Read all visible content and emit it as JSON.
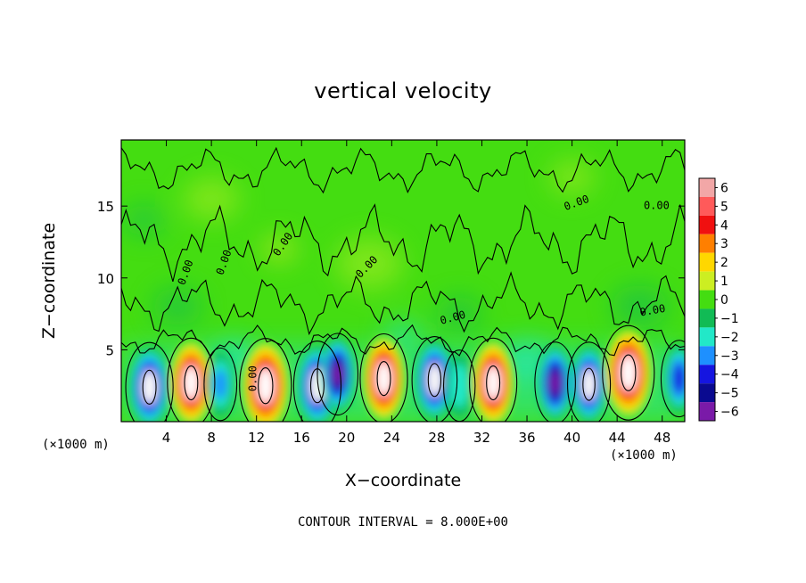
{
  "chart_data": {
    "type": "heatmap",
    "title": "vertical velocity",
    "xlabel": "X−coordinate",
    "ylabel": "Z−coordinate",
    "x_unit_label": "(×1000 m)",
    "note": "CONTOUR INTERVAL = 8.000E+00",
    "xlim": [
      0,
      50
    ],
    "ylim": [
      0,
      19.6
    ],
    "x_ticks": [
      4,
      8,
      12,
      16,
      20,
      24,
      28,
      32,
      36,
      40,
      44,
      48
    ],
    "y_ticks": [
      5,
      10,
      15
    ],
    "colorbar": {
      "levels": [
        6,
        5,
        4,
        3,
        2,
        1,
        0,
        -1,
        -2,
        -3,
        -4,
        -5,
        -6
      ],
      "tick_labels": [
        "6",
        "5",
        "4",
        "3",
        "2",
        "1",
        "0",
        "−1",
        "−2",
        "−3",
        "−4",
        "−5",
        "−6"
      ],
      "colors": [
        "#f2a7a7",
        "#ff5a5a",
        "#f01010",
        "#ff7f00",
        "#ffd700",
        "#ccee22",
        "#44dd11",
        "#11bb55",
        "#22e8c8",
        "#1e90ff",
        "#1515e0",
        "#0a0a90",
        "#7a1aa8"
      ]
    },
    "background_value": 0,
    "contour_labels": [
      "0.00"
    ],
    "cells": [
      {
        "x": 2.5,
        "z": 2.4,
        "w": -9
      },
      {
        "x": 6.2,
        "z": 2.7,
        "w": 9
      },
      {
        "x": 8.8,
        "z": 2.6,
        "w": -2.5
      },
      {
        "x": 12.8,
        "z": 2.5,
        "w": 11
      },
      {
        "x": 17.4,
        "z": 2.5,
        "w": -9
      },
      {
        "x": 19.2,
        "z": 3.3,
        "w": -6
      },
      {
        "x": 23.3,
        "z": 3.0,
        "w": 9
      },
      {
        "x": 27.8,
        "z": 2.9,
        "w": -8
      },
      {
        "x": 30.0,
        "z": 2.5,
        "w": -2
      },
      {
        "x": 33.0,
        "z": 2.7,
        "w": 9
      },
      {
        "x": 38.5,
        "z": 2.7,
        "w": -6
      },
      {
        "x": 41.5,
        "z": 2.6,
        "w": -7
      },
      {
        "x": 45.0,
        "z": 3.4,
        "w": 11
      },
      {
        "x": 49.5,
        "z": 3.0,
        "w": -4
      }
    ]
  }
}
